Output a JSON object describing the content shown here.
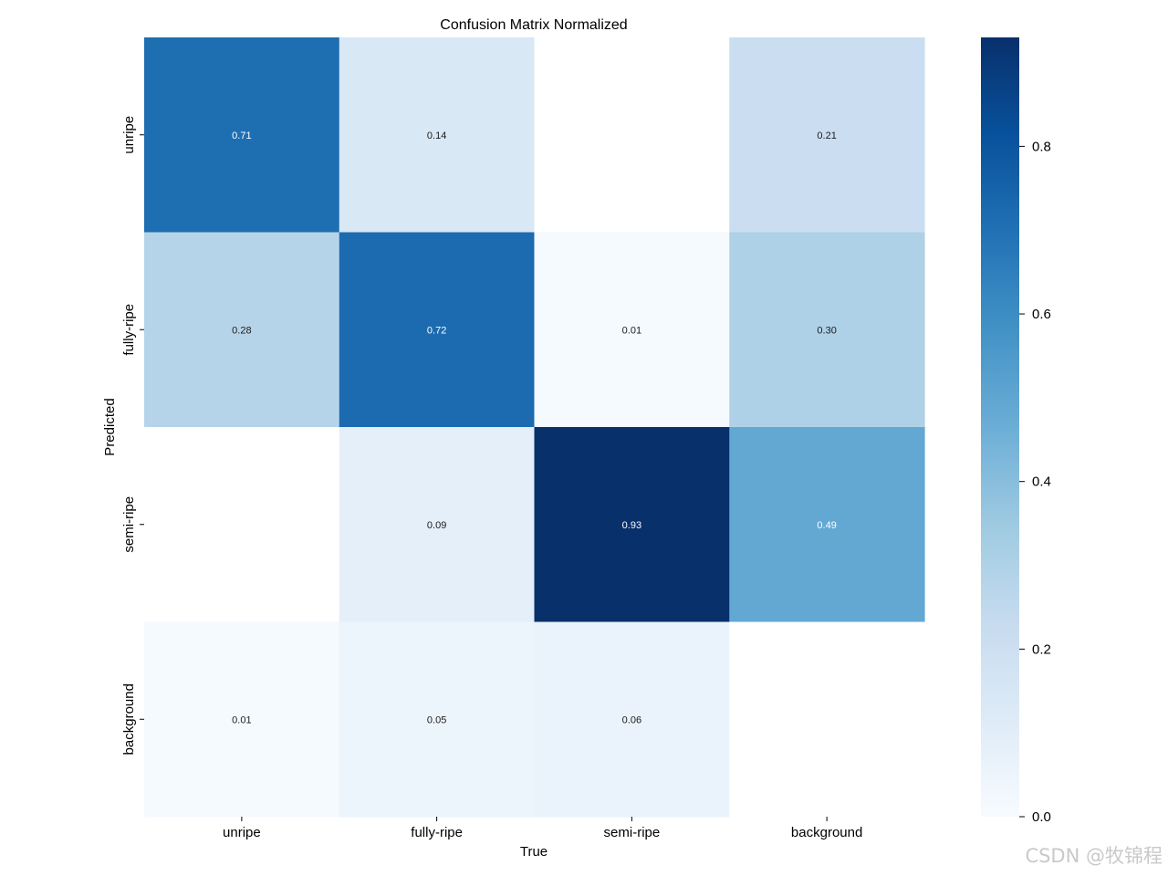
{
  "chart_data": {
    "type": "heatmap",
    "title": "Confusion Matrix Normalized",
    "xlabel": "True",
    "ylabel": "Predicted",
    "x_categories": [
      "unripe",
      "fully-ripe",
      "semi-ripe",
      "background"
    ],
    "y_categories": [
      "unripe",
      "fully-ripe",
      "semi-ripe",
      "background"
    ],
    "values": [
      [
        0.71,
        0.14,
        null,
        0.21
      ],
      [
        0.28,
        0.72,
        0.01,
        0.3
      ],
      [
        null,
        0.09,
        0.93,
        0.49
      ],
      [
        0.01,
        0.05,
        0.06,
        null
      ]
    ],
    "value_labels": [
      [
        "0.71",
        "0.14",
        "",
        "0.21"
      ],
      [
        "0.28",
        "0.72",
        "0.01",
        "0.30"
      ],
      [
        "",
        "0.09",
        "0.93",
        "0.49"
      ],
      [
        "0.01",
        "0.05",
        "0.06",
        ""
      ]
    ],
    "colormap": "Blues",
    "vmin": 0.0,
    "vmax": 0.93,
    "colorbar_ticks": [
      0.0,
      0.2,
      0.4,
      0.6,
      0.8
    ],
    "colorbar_tick_labels": [
      "0.0",
      "0.2",
      "0.4",
      "0.6",
      "0.8"
    ],
    "grid": false
  },
  "watermark": "CSDN @牧锦程"
}
